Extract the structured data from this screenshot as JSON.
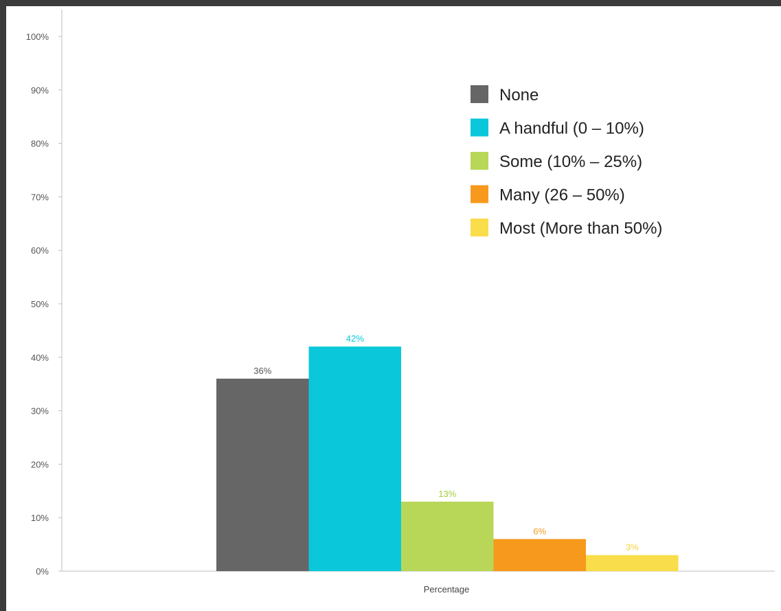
{
  "chart_data": {
    "type": "bar",
    "categories": [
      "Percentage"
    ],
    "xlabel": "",
    "ylabel": "",
    "ylim": [
      0,
      100
    ],
    "yticks": [
      "0%",
      "10%",
      "20%",
      "30%",
      "40%",
      "50%",
      "60%",
      "70%",
      "80%",
      "90%",
      "100%"
    ],
    "legend_position": "top-right",
    "grid": false,
    "series": [
      {
        "name": "None",
        "values": [
          36
        ],
        "label": "36%",
        "color": "#666666",
        "label_color": "#555555"
      },
      {
        "name": "A handful (0 – 10%)",
        "values": [
          42
        ],
        "label": "42%",
        "color": "#0bc7da",
        "label_color": "#0bc7da"
      },
      {
        "name": "Some (10% – 25%)",
        "values": [
          13
        ],
        "label": "13%",
        "color": "#b8d758",
        "label_color": "#a6cc3c"
      },
      {
        "name": "Many (26 – 50%)",
        "values": [
          6
        ],
        "label": "6%",
        "color": "#f7991c",
        "label_color": "#f7991c"
      },
      {
        "name": "Most (More than 50%)",
        "values": [
          3
        ],
        "label": "3%",
        "color": "#fadd4a",
        "label_color": "#f5d33a"
      }
    ]
  }
}
